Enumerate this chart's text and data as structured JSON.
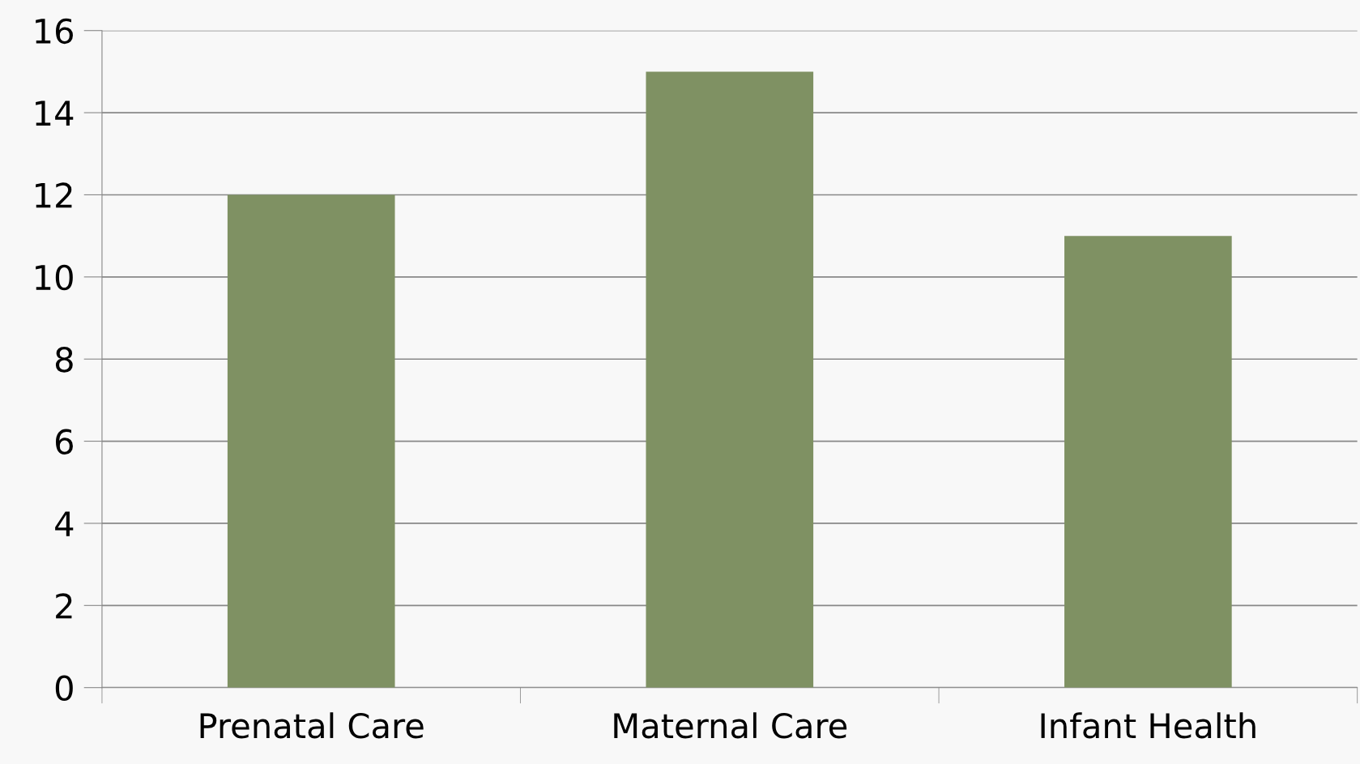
{
  "chart_data": {
    "type": "bar",
    "categories": [
      "Prenatal Care",
      "Maternal Care",
      "Infant Health"
    ],
    "values": [
      12,
      15,
      11
    ],
    "color": "#7f9163",
    "ylim": [
      0,
      16
    ],
    "yticks": [
      0,
      2,
      4,
      6,
      8,
      10,
      12,
      14,
      16
    ],
    "grid": "y"
  }
}
